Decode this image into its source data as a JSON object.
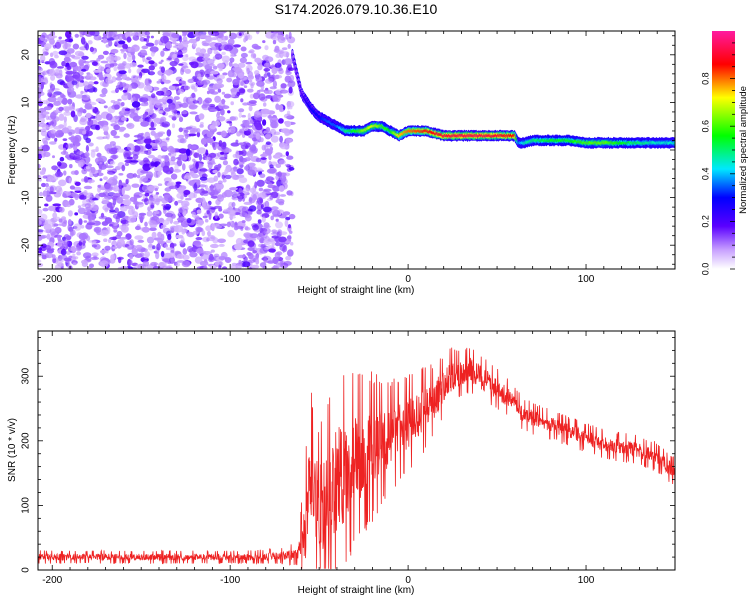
{
  "figure_title": "S174.2026.079.10.36.E10",
  "chart_data": [
    {
      "type": "heatmap",
      "title": "S174.2026.079.10.36.E10",
      "xlabel": "Height of straight line (km)",
      "ylabel": "Frequency (Hz)",
      "xlim": [
        -208,
        150
      ],
      "ylim": [
        -25,
        25
      ],
      "xticks": [
        -200,
        -100,
        0,
        100
      ],
      "yticks": [
        -20,
        -10,
        0,
        10,
        20
      ],
      "colorbar": {
        "label": "Normalized spectral amplitude",
        "range": [
          0.0,
          1.0
        ],
        "ticks": [
          0.0,
          0.2,
          0.4,
          0.6,
          0.8
        ],
        "tick_labels": [
          "0.0",
          "0.2",
          "0.4",
          "0.6",
          "0.8"
        ],
        "colormap": [
          "#ffffff",
          "#7a00ff",
          "#0000ff",
          "#00e0ff",
          "#00ff00",
          "#ffff00",
          "#ff0000",
          "#ff00aa"
        ]
      },
      "noise_region_x": [
        -208,
        -65
      ],
      "noise_level": 0.15,
      "ridge": {
        "x": [
          -65,
          -60,
          -55,
          -50,
          -45,
          -40,
          -35,
          -30,
          -25,
          -20,
          -15,
          -10,
          -5,
          0,
          5,
          10,
          20,
          30,
          40,
          50,
          60,
          62,
          65,
          70,
          80,
          90,
          100,
          110,
          120,
          130,
          140,
          150
        ],
        "frequency": [
          20,
          12,
          9,
          7,
          6,
          5,
          4,
          4,
          4,
          5,
          5,
          4,
          3,
          4,
          4,
          4,
          3,
          3,
          3,
          3,
          3,
          1.5,
          1.5,
          2,
          2,
          2,
          1.5,
          1.5,
          1.5,
          1.5,
          1.5,
          1.5
        ],
        "amplitude": [
          0.15,
          0.2,
          0.3,
          0.3,
          0.35,
          0.35,
          0.5,
          0.55,
          0.65,
          0.7,
          0.6,
          0.55,
          0.75,
          0.8,
          0.82,
          0.85,
          0.9,
          0.92,
          0.92,
          0.9,
          0.85,
          0.35,
          0.45,
          0.5,
          0.55,
          0.55,
          0.6,
          0.62,
          0.55,
          0.5,
          0.45,
          0.45
        ]
      }
    },
    {
      "type": "line",
      "xlabel": "Height of straight line (km)",
      "ylabel": "SNR (10 * v/v)",
      "xlim": [
        -208,
        150
      ],
      "ylim": [
        0,
        370
      ],
      "xticks": [
        -200,
        -100,
        0,
        100
      ],
      "yticks": [
        0,
        100,
        200,
        300
      ],
      "series": [
        {
          "name": "SNR",
          "color": "#ee2222",
          "x": [
            -208,
            -180,
            -150,
            -120,
            -90,
            -70,
            -62,
            -58,
            -55,
            -50,
            -45,
            -40,
            -35,
            -30,
            -25,
            -20,
            -15,
            -10,
            -5,
            0,
            5,
            10,
            15,
            20,
            25,
            30,
            35,
            40,
            45,
            50,
            55,
            60,
            65,
            70,
            80,
            90,
            100,
            110,
            120,
            130,
            140,
            150
          ],
          "mean": [
            20,
            20,
            20,
            20,
            20,
            22,
            25,
            60,
            130,
            90,
            110,
            140,
            150,
            170,
            180,
            190,
            200,
            205,
            215,
            225,
            240,
            250,
            265,
            285,
            300,
            305,
            310,
            300,
            290,
            280,
            270,
            255,
            240,
            235,
            225,
            215,
            205,
            195,
            190,
            185,
            175,
            150
          ],
          "spread": [
            8,
            8,
            8,
            8,
            8,
            10,
            15,
            80,
            120,
            110,
            120,
            130,
            120,
            110,
            100,
            90,
            80,
            70,
            65,
            60,
            55,
            50,
            45,
            40,
            35,
            30,
            30,
            30,
            28,
            26,
            24,
            22,
            20,
            20,
            18,
            18,
            18,
            18,
            18,
            18,
            18,
            18
          ]
        }
      ]
    }
  ]
}
